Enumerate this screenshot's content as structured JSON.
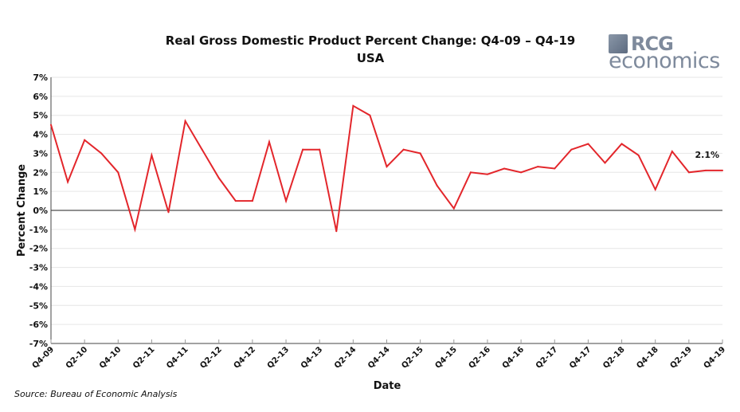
{
  "chart_data": {
    "type": "line",
    "title": "Real Gross Domestic Product Percent Change: Q4-09 – Q4-19",
    "subtitle": "USA",
    "xlabel": "Date",
    "ylabel": "Percent Change",
    "ylim": [
      -7,
      7
    ],
    "yticks": [
      "7%",
      "6%",
      "5%",
      "4%",
      "3%",
      "2%",
      "1%",
      "0%",
      "-1%",
      "-2%",
      "-3%",
      "-4%",
      "-5%",
      "-6%",
      "-7%"
    ],
    "x": [
      "Q4-09",
      "Q1-10",
      "Q2-10",
      "Q3-10",
      "Q4-10",
      "Q1-11",
      "Q2-11",
      "Q3-11",
      "Q4-11",
      "Q1-12",
      "Q2-12",
      "Q3-12",
      "Q4-12",
      "Q1-13",
      "Q2-13",
      "Q3-13",
      "Q4-13",
      "Q1-14",
      "Q2-14",
      "Q3-14",
      "Q4-14",
      "Q1-15",
      "Q2-15",
      "Q3-15",
      "Q4-15",
      "Q1-16",
      "Q2-16",
      "Q3-16",
      "Q4-16",
      "Q1-17",
      "Q2-17",
      "Q3-17",
      "Q4-17",
      "Q1-18",
      "Q2-18",
      "Q3-18",
      "Q4-18",
      "Q1-19",
      "Q2-19",
      "Q3-19",
      "Q4-19"
    ],
    "xtick_labels": [
      "Q4-09",
      "Q2-10",
      "Q4-10",
      "Q2-11",
      "Q4-11",
      "Q2-12",
      "Q4-12",
      "Q2-13",
      "Q4-13",
      "Q2-14",
      "Q4-14",
      "Q2-15",
      "Q4-15",
      "Q2-16",
      "Q4-16",
      "Q2-17",
      "Q4-17",
      "Q2-18",
      "Q4-18",
      "Q2-19",
      "Q4-19"
    ],
    "values": [
      4.5,
      1.5,
      3.7,
      3.0,
      2.0,
      -1.0,
      2.9,
      -0.1,
      4.7,
      3.2,
      1.7,
      0.5,
      0.5,
      3.6,
      0.5,
      3.2,
      3.2,
      -1.1,
      5.5,
      5.0,
      2.3,
      3.2,
      3.0,
      1.3,
      0.1,
      2.0,
      1.9,
      2.2,
      2.0,
      2.3,
      2.2,
      3.2,
      3.5,
      2.5,
      3.5,
      2.9,
      1.1,
      3.1,
      2.0,
      2.1,
      2.1
    ],
    "annotation": "2.1%",
    "grid": true,
    "line_color": "#e3262b",
    "source": "Source: Bureau of Economic Analysis"
  },
  "logo": {
    "line1": "RCG",
    "line2": "economics"
  }
}
